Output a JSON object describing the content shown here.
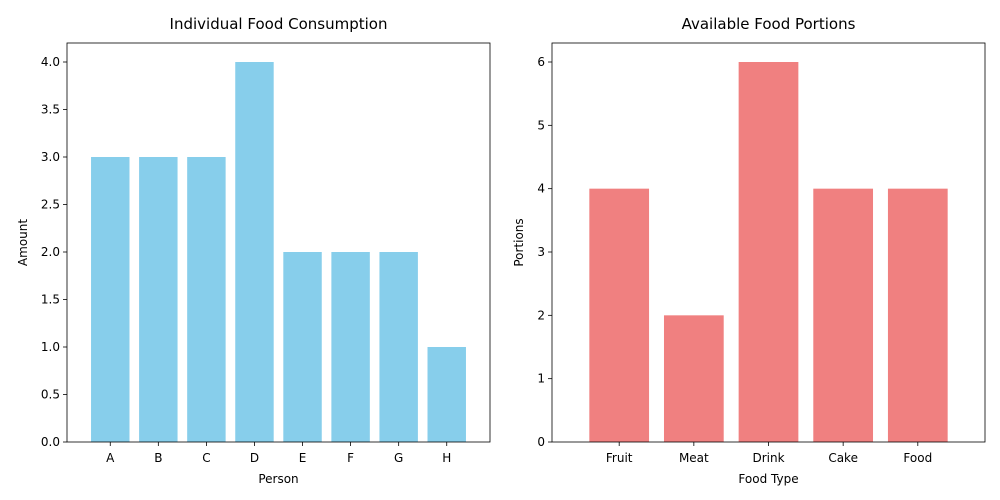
{
  "chart_data": [
    {
      "type": "bar",
      "title": "Individual Food Consumption",
      "xlabel": "Person",
      "ylabel": "Amount",
      "categories": [
        "A",
        "B",
        "C",
        "D",
        "E",
        "F",
        "G",
        "H"
      ],
      "values": [
        3,
        3,
        3,
        4,
        2,
        2,
        2,
        1
      ],
      "ylim": [
        0,
        4.2
      ],
      "yticks": [
        0,
        0.5,
        1,
        1.5,
        2,
        2.5,
        3,
        3.5,
        4
      ],
      "ytick_labels": [
        "0.0",
        "0.5",
        "1.0",
        "1.5",
        "2.0",
        "2.5",
        "3.0",
        "3.5",
        "4.0"
      ],
      "color": "#87ceeb",
      "grid": false,
      "legend": "none"
    },
    {
      "type": "bar",
      "title": "Available Food Portions",
      "xlabel": "Food Type",
      "ylabel": "Portions",
      "categories": [
        "Fruit",
        "Meat",
        "Drink",
        "Cake",
        "Food"
      ],
      "values": [
        4,
        2,
        6,
        4,
        4
      ],
      "ylim": [
        0,
        6.3
      ],
      "yticks": [
        0,
        1,
        2,
        3,
        4,
        5,
        6
      ],
      "ytick_labels": [
        "0",
        "1",
        "2",
        "3",
        "4",
        "5",
        "6"
      ],
      "color": "#f08080",
      "grid": false,
      "legend": "none"
    }
  ]
}
